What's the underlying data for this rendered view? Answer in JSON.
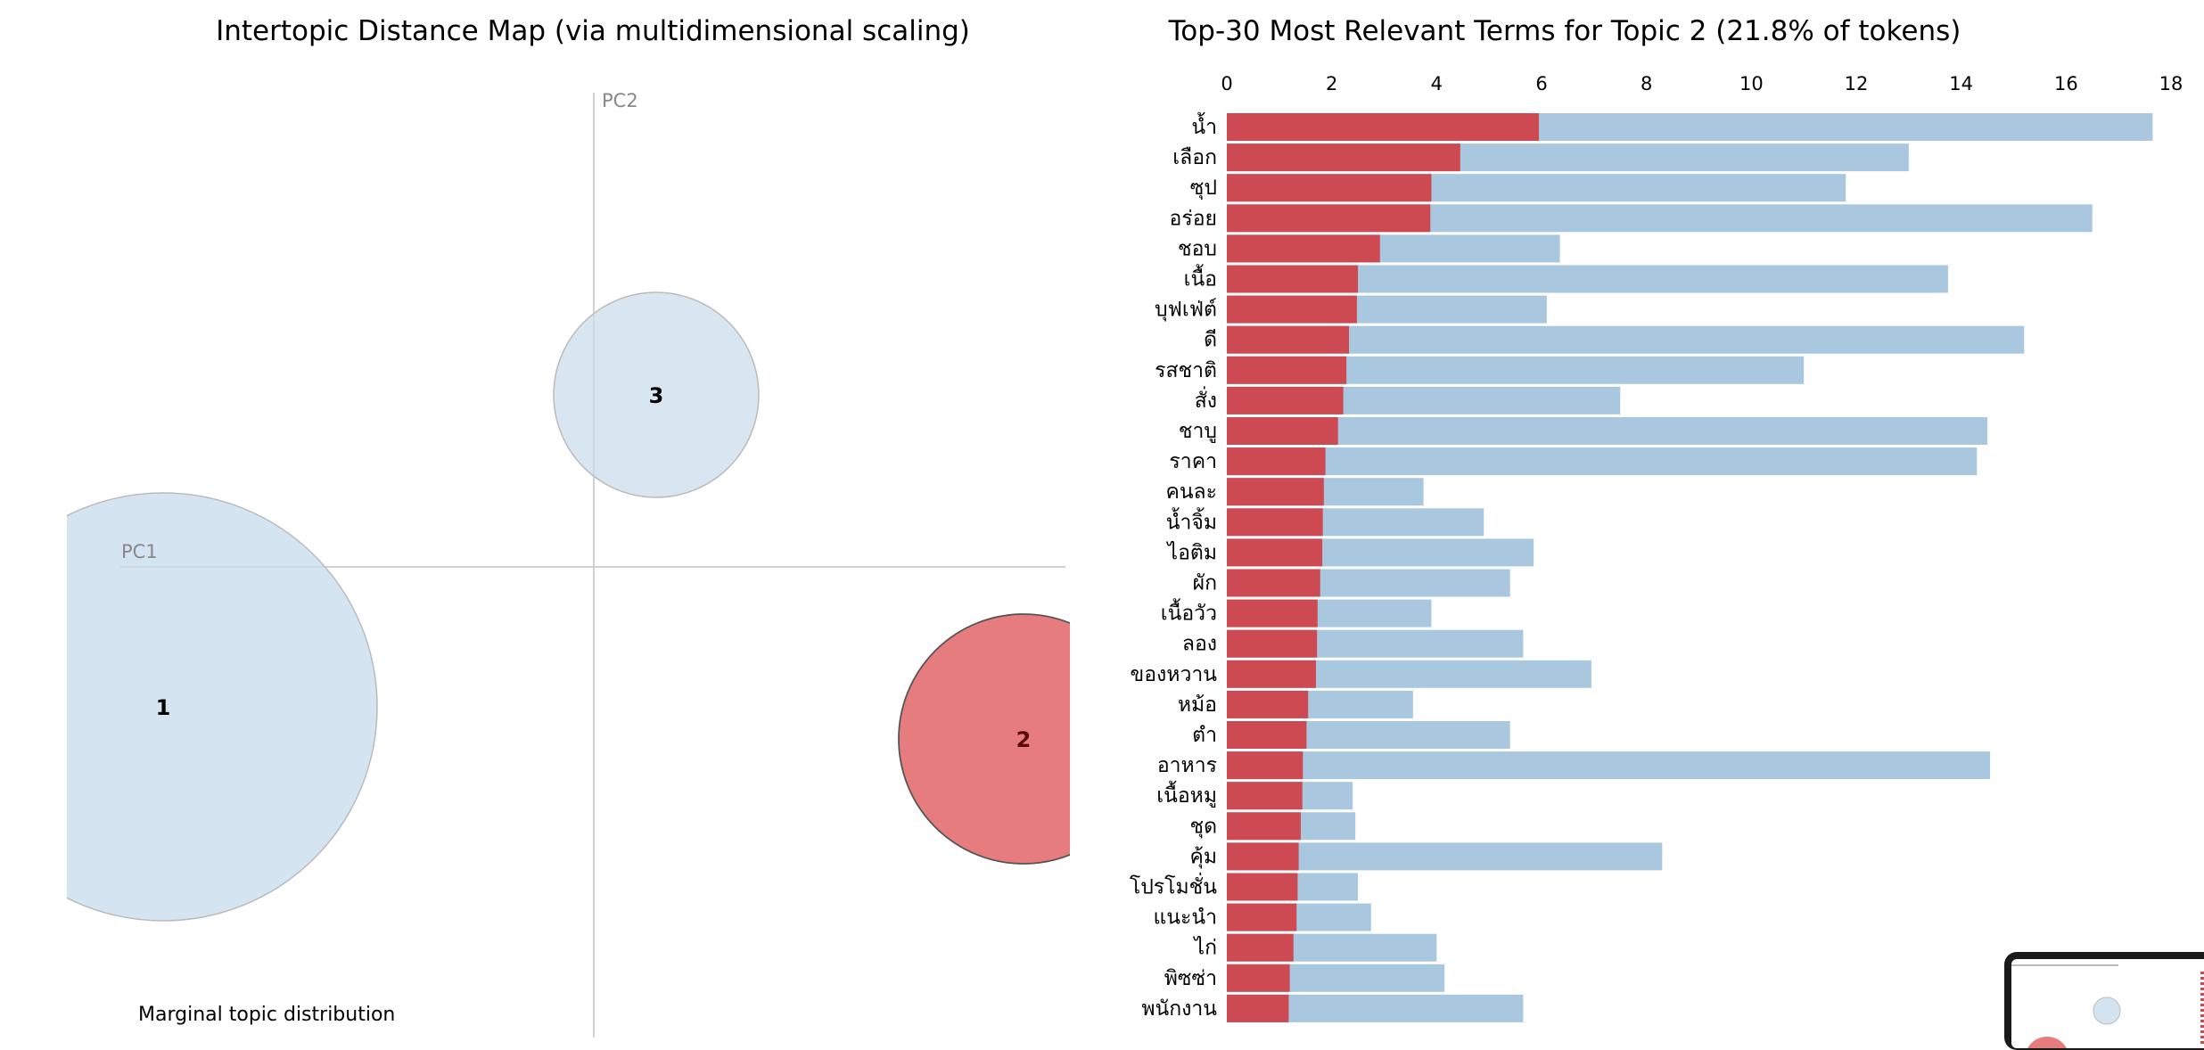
{
  "left_panel": {
    "title": "Intertopic Distance Map (via multidimensional scaling)",
    "pc1_label": "PC1",
    "pc2_label": "PC2",
    "legend_title": "Marginal topic distribution"
  },
  "chart_data": [
    {
      "type": "scatter",
      "title": "Intertopic Distance Map (via multidimensional scaling)",
      "xlabel": "PC1",
      "ylabel": "PC2",
      "points": [
        {
          "topic": "1",
          "selected": false
        },
        {
          "topic": "3",
          "selected": false
        },
        {
          "topic": "2",
          "selected": true
        }
      ],
      "colors": {
        "default": "#d3e3f0",
        "selected": "#e67c7e",
        "selected_stroke": "#555555",
        "default_stroke": "#bbbbbb"
      }
    },
    {
      "type": "bar",
      "title": "Top-30 Most Relevant Terms for Topic 2 (21.8% of tokens)",
      "xlim": [
        0,
        18
      ],
      "ticks": [
        0,
        2,
        4,
        6,
        8,
        10,
        12,
        14,
        16,
        18
      ],
      "colors": {
        "overall": "#a9c8e0",
        "topic": "#cd4a52"
      },
      "categories": [
        "น้ำ",
        "เลือก",
        "ซุป",
        "อร่อย",
        "ชอบ",
        "เนื้อ",
        "บุฟเฟ่ต์",
        "ดี",
        "รสชาติ",
        "สั่ง",
        "ชาบู",
        "ราคา",
        "คนละ",
        "น้ำจิ้ม",
        "ไอติม",
        "ผัก",
        "เนื้อวัว",
        "ลอง",
        "ของหวาน",
        "หม้อ",
        "ตำ",
        "อาหาร",
        "เนื้อหมู",
        "ชุด",
        "คุ้ม",
        "โปรโมชั่น",
        "แนะนำ",
        "ไก่",
        "พิซซ่า",
        "พนักงาน"
      ],
      "series": [
        {
          "values": [
            17.65,
            13.0,
            11.8,
            16.5,
            6.35,
            13.75,
            6.1,
            15.2,
            11.0,
            7.5,
            14.5,
            14.3,
            3.75,
            4.9,
            5.85,
            5.4,
            3.9,
            5.65,
            6.95,
            3.55,
            5.4,
            14.55,
            2.4,
            2.45,
            8.3,
            2.5,
            2.75,
            4.0,
            4.15,
            5.65
          ]
        },
        {
          "values": [
            5.95,
            4.45,
            3.9,
            3.88,
            2.92,
            2.5,
            2.48,
            2.33,
            2.28,
            2.22,
            2.12,
            1.88,
            1.85,
            1.83,
            1.82,
            1.78,
            1.73,
            1.72,
            1.7,
            1.55,
            1.52,
            1.45,
            1.44,
            1.41,
            1.37,
            1.35,
            1.33,
            1.27,
            1.2,
            1.18
          ]
        }
      ]
    }
  ]
}
